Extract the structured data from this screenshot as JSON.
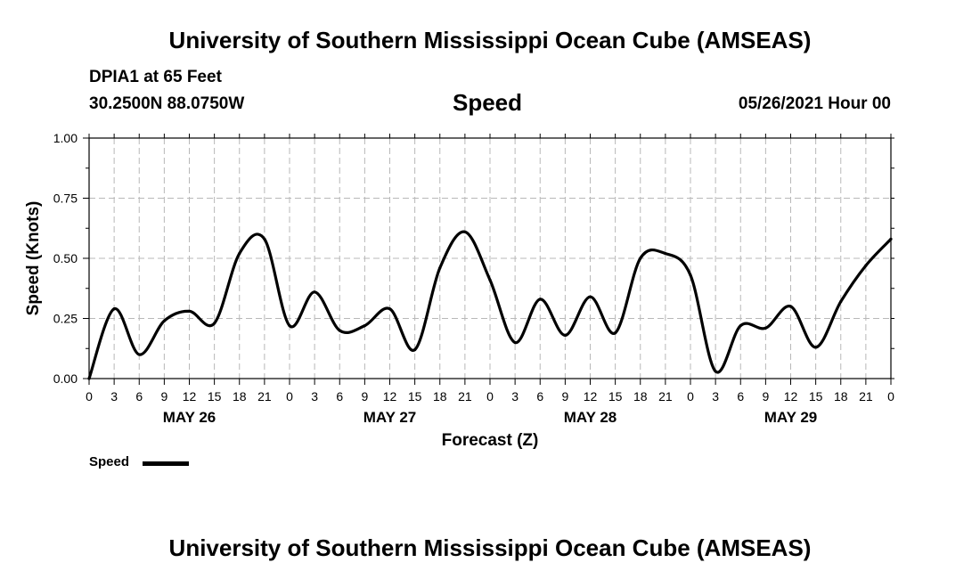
{
  "header": {
    "title_top": "University of Southern Mississippi Ocean Cube (AMSEAS)",
    "station_line": "DPIA1 at 65 Feet",
    "coords_line": "30.2500N  88.0750W",
    "date_line": "05/26/2021 Hour 00"
  },
  "footer": {
    "title_bottom": "University of Southern Mississippi Ocean Cube (AMSEAS)"
  },
  "legend": {
    "label": "Speed",
    "color": "#000000"
  },
  "chart_data": {
    "type": "line",
    "title": "Speed",
    "xlabel": "Forecast (Z)",
    "ylabel": "Speed (Knots)",
    "xlim": [
      0,
      96
    ],
    "ylim": [
      0,
      1
    ],
    "yticks": [
      "0.00",
      "0.25",
      "0.50",
      "0.75",
      "1.00"
    ],
    "xtick_labels": [
      "0",
      "3",
      "6",
      "9",
      "12",
      "15",
      "18",
      "21",
      "0",
      "3",
      "6",
      "9",
      "12",
      "15",
      "18",
      "21",
      "0",
      "3",
      "6",
      "9",
      "12",
      "15",
      "18",
      "21",
      "0",
      "3",
      "6",
      "9",
      "12",
      "15",
      "18",
      "21",
      "0"
    ],
    "day_labels": [
      {
        "hour": 12,
        "label": "MAY 26"
      },
      {
        "hour": 36,
        "label": "MAY 27"
      },
      {
        "hour": 60,
        "label": "MAY 28"
      },
      {
        "hour": 84,
        "label": "MAY 29"
      }
    ],
    "grid": true,
    "series": [
      {
        "name": "Speed",
        "x": [
          0,
          3,
          6,
          9,
          12,
          15,
          18,
          21,
          24,
          27,
          30,
          33,
          36,
          39,
          42,
          45,
          48,
          51,
          54,
          57,
          60,
          63,
          66,
          69,
          72,
          75,
          78,
          81,
          84,
          87,
          90,
          93,
          96
        ],
        "values": [
          0.0,
          0.29,
          0.1,
          0.24,
          0.28,
          0.23,
          0.52,
          0.58,
          0.22,
          0.36,
          0.2,
          0.22,
          0.29,
          0.12,
          0.46,
          0.61,
          0.41,
          0.15,
          0.33,
          0.18,
          0.34,
          0.19,
          0.5,
          0.52,
          0.43,
          0.03,
          0.22,
          0.21,
          0.3,
          0.13,
          0.32,
          0.47,
          0.58
        ]
      }
    ]
  }
}
